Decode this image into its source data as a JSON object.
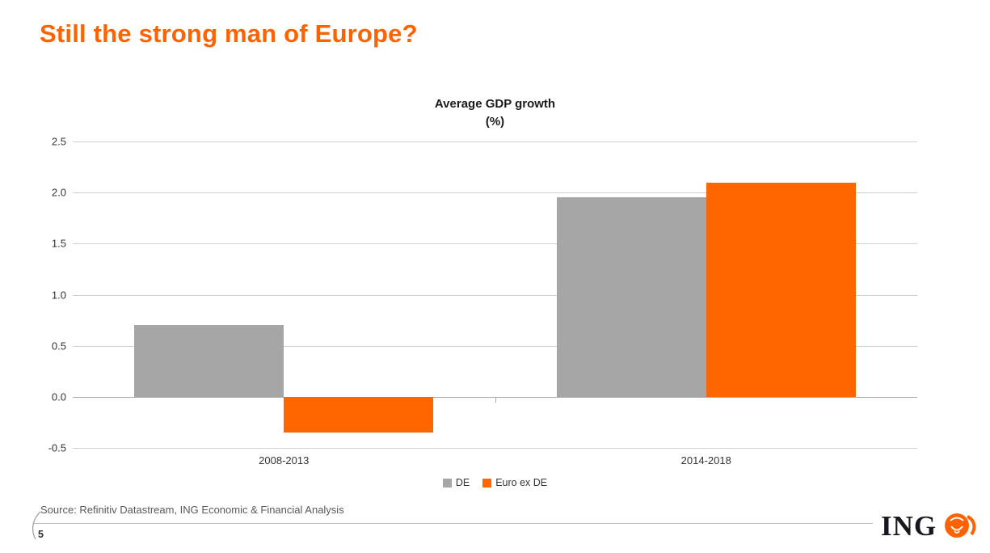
{
  "slide": {
    "title": "Still the strong man of Europe?",
    "source": "Source: Refinitiv Datastream, ING Economic & Financial Analysis",
    "page_number": "5",
    "logo_text": "ING"
  },
  "colors": {
    "accent": "#ff6200",
    "series_de": "#a6a6a6",
    "series_euro_ex_de": "#ff6600"
  },
  "chart_data": {
    "type": "bar",
    "title": "Average GDP growth",
    "subtitle": "(%)",
    "categories": [
      "2008-2013",
      "2014-2018"
    ],
    "series": [
      {
        "name": "DE",
        "color": "#a6a6a6",
        "values": [
          0.7,
          1.95
        ]
      },
      {
        "name": "Euro ex DE",
        "color": "#ff6600",
        "values": [
          -0.35,
          2.1
        ]
      }
    ],
    "ylim": [
      -0.5,
      2.5
    ],
    "yticks": [
      -0.5,
      0,
      0.5,
      1,
      1.5,
      2,
      2.5
    ],
    "grid": true,
    "legend_position": "bottom"
  }
}
